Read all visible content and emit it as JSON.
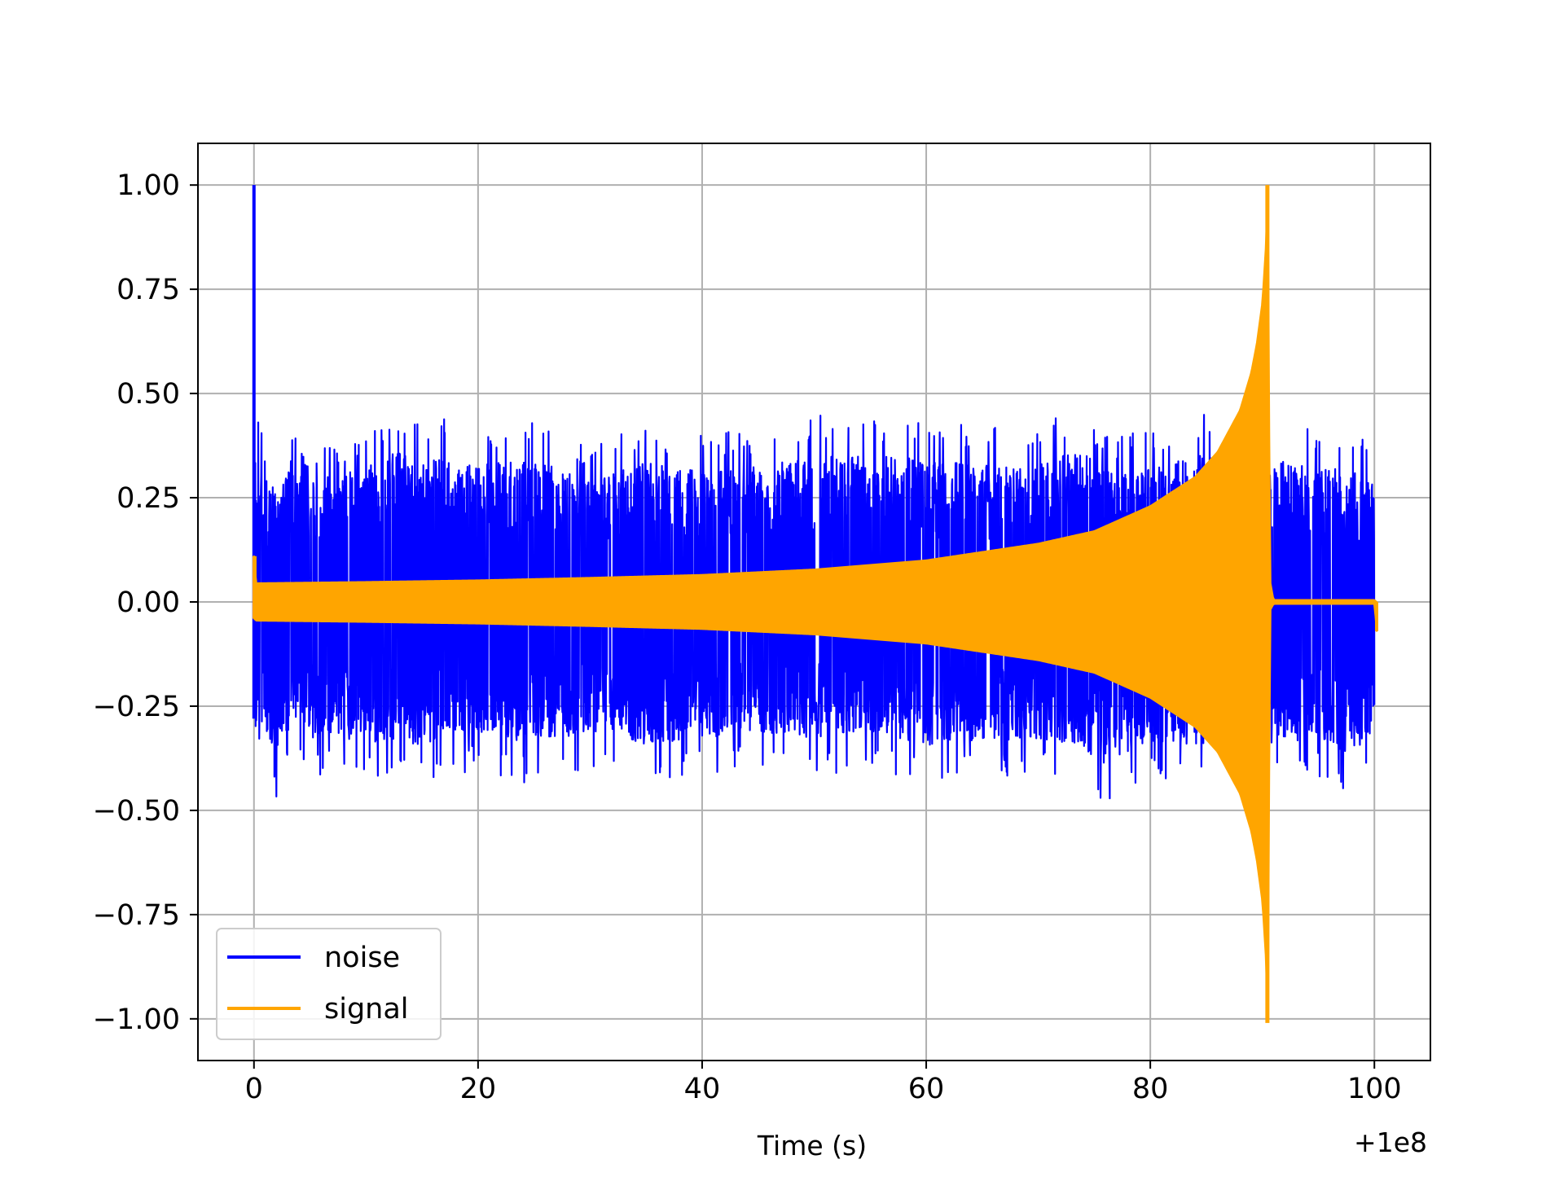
{
  "chart_data": {
    "type": "line",
    "title": "",
    "xlabel": "Time (s)",
    "ylabel": "",
    "x_offset_label": "+1e8",
    "xlim": [
      -5,
      105
    ],
    "ylim": [
      -1.1,
      1.1
    ],
    "x_ticks": [
      0,
      20,
      40,
      60,
      80,
      100
    ],
    "x_tick_labels": [
      "0",
      "20",
      "40",
      "60",
      "80",
      "100"
    ],
    "y_ticks": [
      1.0,
      0.75,
      0.5,
      0.25,
      0.0,
      -0.25,
      -0.5,
      -0.75,
      -1.0
    ],
    "y_tick_labels": [
      "1.00",
      "0.75",
      "0.50",
      "0.25",
      "0.00",
      "−0.25",
      "−0.50",
      "−0.75",
      "−1.00"
    ],
    "grid": true,
    "legend_position": "lower-left",
    "series": [
      {
        "name": "noise",
        "color": "#0000ff",
        "x": [
          0,
          0.1,
          0.5,
          1,
          2,
          3,
          5,
          8,
          12,
          15,
          20,
          25,
          30,
          35,
          40,
          45,
          50,
          55,
          60,
          65,
          70,
          74,
          76,
          80,
          85,
          88,
          90.5,
          92,
          95,
          98,
          100
        ],
        "upper": [
          1.0,
          0.5,
          0.43,
          0.38,
          0.36,
          0.4,
          0.38,
          0.39,
          0.46,
          0.45,
          0.42,
          0.44,
          0.37,
          0.43,
          0.4,
          0.42,
          0.45,
          0.45,
          0.44,
          0.42,
          0.43,
          0.47,
          0.4,
          0.41,
          0.46,
          0.4,
          0.42,
          0.45,
          0.42,
          0.4,
          0.38
        ],
        "lower": [
          -0.28,
          -0.3,
          -0.35,
          -0.4,
          -0.47,
          -0.4,
          -0.42,
          -0.42,
          -0.44,
          -0.44,
          -0.4,
          -0.44,
          -0.4,
          -0.44,
          -0.42,
          -0.4,
          -0.42,
          -0.4,
          -0.44,
          -0.43,
          -0.42,
          -0.45,
          -0.51,
          -0.43,
          -0.44,
          -0.42,
          -0.38,
          -0.43,
          -0.42,
          -0.47,
          -0.4
        ]
      },
      {
        "name": "signal",
        "color": "#ffa500",
        "x": [
          0,
          0.2,
          10,
          20,
          30,
          40,
          50,
          60,
          70,
          75,
          80,
          84,
          86,
          88,
          89,
          89.5,
          90,
          90.3,
          90.5,
          90.7,
          91,
          100,
          100.2
        ],
        "upper": [
          0.11,
          0.045,
          0.048,
          0.052,
          0.058,
          0.065,
          0.078,
          0.1,
          0.14,
          0.17,
          0.23,
          0.3,
          0.36,
          0.46,
          0.55,
          0.62,
          0.72,
          0.85,
          1.0,
          0.05,
          0.005,
          0.005,
          0.0
        ],
        "lower": [
          -0.04,
          -0.045,
          -0.048,
          -0.052,
          -0.058,
          -0.065,
          -0.078,
          -0.1,
          -0.14,
          -0.17,
          -0.23,
          -0.3,
          -0.36,
          -0.46,
          -0.55,
          -0.62,
          -0.72,
          -0.85,
          -1.01,
          -0.02,
          -0.005,
          -0.005,
          -0.07
        ]
      }
    ]
  }
}
